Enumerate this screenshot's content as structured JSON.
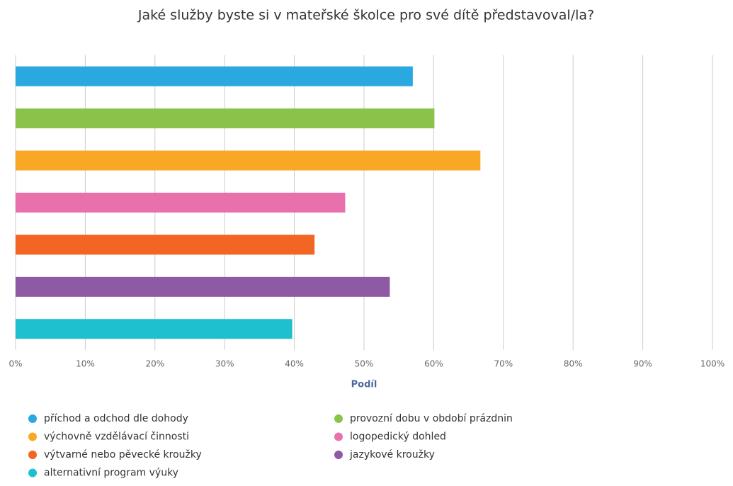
{
  "chart_data": {
    "type": "bar",
    "orientation": "horizontal",
    "title": "Jaké služby byste si v mateřské školce pro své dítě představoval/la?",
    "xlabel": "Podíl",
    "series": [
      {
        "name": "příchod a odchod dle dohody",
        "color": "#2aa9e0",
        "values": [
          57.0
        ]
      },
      {
        "name": "provozní dobu v období prázdnin",
        "color": "#8bc34a",
        "values": [
          60.1
        ]
      },
      {
        "name": "výchovně vzdělávací činnosti",
        "color": "#f9a825",
        "values": [
          66.7
        ]
      },
      {
        "name": "logopedický dohled",
        "color": "#e870ad",
        "values": [
          47.3
        ]
      },
      {
        "name": "výtvarné nebo pěvecké kroužky",
        "color": "#f26522",
        "values": [
          42.9
        ]
      },
      {
        "name": "jazykové kroužky",
        "color": "#8e59a5",
        "values": [
          53.7
        ]
      },
      {
        "name": "alternativní program výuky",
        "color": "#1ebfcf",
        "values": [
          39.7
        ]
      }
    ],
    "xlim": [
      0,
      100
    ],
    "xticks": [
      {
        "value": 0,
        "label": "0%"
      },
      {
        "value": 10,
        "label": "10%"
      },
      {
        "value": 20,
        "label": "20%"
      },
      {
        "value": 30,
        "label": "30%"
      },
      {
        "value": 40,
        "label": "40%"
      },
      {
        "value": 50,
        "label": "50%"
      },
      {
        "value": 60,
        "label": "60%"
      },
      {
        "value": 70,
        "label": "70%"
      },
      {
        "value": 80,
        "label": "80%"
      },
      {
        "value": 90,
        "label": "90%"
      },
      {
        "value": 100,
        "label": "100%"
      }
    ],
    "grid": true,
    "legend": "bottom"
  }
}
